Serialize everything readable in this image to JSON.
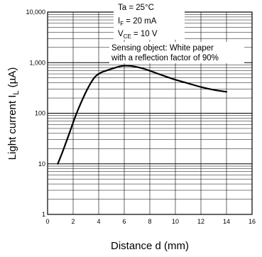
{
  "chart_data": {
    "type": "line",
    "title": "",
    "xlabel": {
      "main": "Distance d (mm)"
    },
    "ylabel": {
      "prefix": "Light current  I",
      "sub": "L",
      "suffix": " (µA)"
    },
    "x_scale": "linear",
    "y_scale": "log",
    "xlim": [
      0,
      16
    ],
    "ylim": [
      1,
      10000
    ],
    "grid": true,
    "x_ticks": [
      "0",
      "2",
      "4",
      "6",
      "8",
      "10",
      "12",
      "14",
      "16"
    ],
    "y_ticks": [
      "1",
      "10",
      "100",
      "1,000",
      "10,000"
    ],
    "conditions": [
      {
        "main": "Ta = 25°C",
        "sub": "",
        "rest": ""
      },
      {
        "main": "I",
        "sub": "F",
        "rest": " = 20 mA"
      },
      {
        "main": "V",
        "sub": "CE",
        "rest": " = 10 V"
      }
    ],
    "note": [
      "Sensing object: White paper",
      "with a reflection factor of 90%"
    ],
    "series": [
      {
        "x": [
          0.8,
          1.2,
          1.7,
          2.2,
          2.7,
          3.2,
          3.7,
          4.2,
          4.7,
          5.2,
          5.7,
          6.0,
          6.5,
          7.0,
          7.5,
          8.0,
          9.0,
          10.0,
          11.0,
          12.0,
          13.0,
          14.0
        ],
        "y": [
          10,
          18,
          40,
          90,
          180,
          330,
          520,
          640,
          710,
          780,
          850,
          870,
          860,
          820,
          760,
          690,
          560,
          460,
          390,
          330,
          290,
          265
        ]
      }
    ],
    "colors": {
      "line": "#000000",
      "grid": "#000000",
      "background": "#ffffff"
    }
  }
}
